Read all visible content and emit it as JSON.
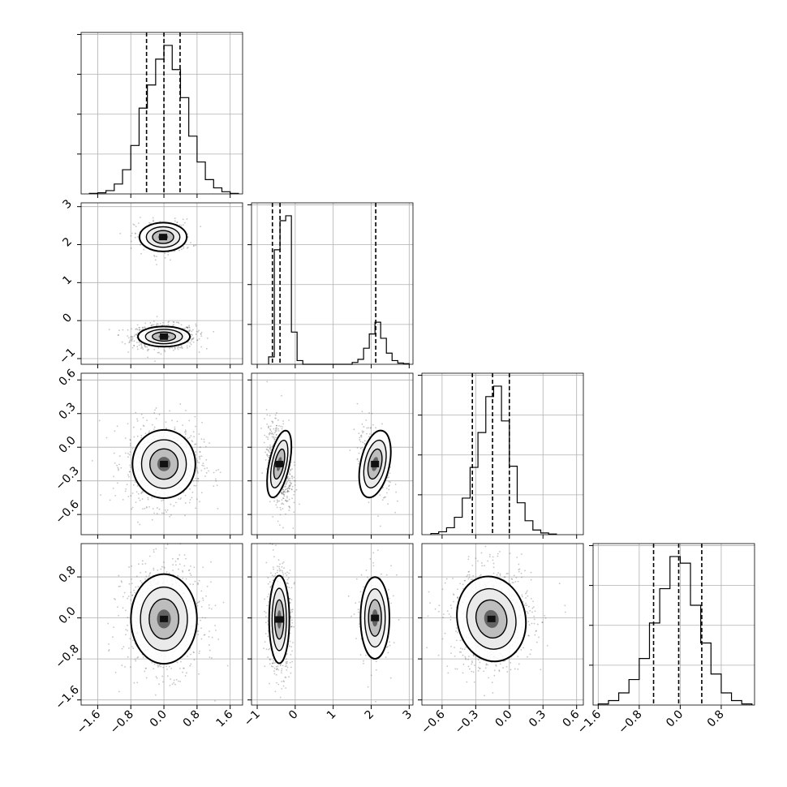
{
  "colors": {
    "line": "#000000",
    "grid": "#b0b0b0",
    "points": "#5a5a5a",
    "background": "#ffffff"
  },
  "chart_data": {
    "type": "corner",
    "title": "",
    "grid": true,
    "params": [
      {
        "tick_values": [
          -1.6,
          -0.8,
          0.0,
          0.8,
          1.6
        ],
        "tick_labels": [
          "−1.6",
          "−0.8",
          "0.0",
          "0.8",
          "1.6"
        ],
        "range": [
          -2.0,
          1.9
        ]
      },
      {
        "tick_values": [
          -1,
          0,
          1,
          2,
          3
        ],
        "tick_labels": [
          "−1",
          "0",
          "1",
          "2",
          "3"
        ],
        "range": [
          -1.15,
          3.1
        ]
      },
      {
        "tick_values": [
          -0.6,
          -0.3,
          0.0,
          0.3,
          0.6
        ],
        "tick_labels": [
          "−0.6",
          "−0.3",
          "0.0",
          "0.3",
          "0.6"
        ],
        "range": [
          -0.78,
          0.66
        ]
      },
      {
        "tick_values": [
          -1.6,
          -0.8,
          0.0,
          0.8
        ],
        "tick_labels": [
          "−1.6",
          "−0.8",
          "0.0",
          "0.8"
        ],
        "range": [
          -1.7,
          1.45
        ]
      }
    ],
    "marginals": [
      {
        "bins": [
          -1.8,
          -1.6,
          -1.4,
          -1.2,
          -1.0,
          -0.8,
          -0.6,
          -0.4,
          -0.2,
          0.0,
          0.2,
          0.4,
          0.6,
          0.8,
          1.0,
          1.2,
          1.4,
          1.6
        ],
        "counts": [
          1,
          2,
          6,
          18,
          44,
          88,
          156,
          198,
          245,
          270,
          226,
          175,
          105,
          58,
          26,
          11,
          4,
          1
        ],
        "quantiles": [
          -0.42,
          0.0,
          0.39
        ]
      },
      {
        "bins": [
          -0.7,
          -0.55,
          -0.4,
          -0.25,
          -0.1,
          0.05,
          1.5,
          1.65,
          1.8,
          1.95,
          2.1,
          2.25,
          2.4,
          2.55,
          2.7,
          2.85
        ],
        "counts": [
          12,
          185,
          232,
          240,
          52,
          6,
          3,
          8,
          26,
          49,
          68,
          42,
          18,
          6,
          2,
          1
        ],
        "quantiles": [
          -0.6,
          -0.4,
          2.12
        ]
      },
      {
        "bins": [
          -0.7,
          -0.63,
          -0.56,
          -0.49,
          -0.42,
          -0.35,
          -0.28,
          -0.21,
          -0.14,
          -0.07,
          0.0,
          0.07,
          0.14,
          0.21,
          0.28,
          0.35
        ],
        "counts": [
          2,
          5,
          12,
          30,
          63,
          116,
          176,
          238,
          256,
          196,
          118,
          55,
          24,
          8,
          3,
          1
        ],
        "quantiles": [
          -0.33,
          -0.15,
          0.0
        ]
      },
      {
        "bins": [
          -1.6,
          -1.4,
          -1.2,
          -1.0,
          -0.8,
          -0.6,
          -0.4,
          -0.2,
          0.0,
          0.2,
          0.4,
          0.6,
          0.8,
          1.0,
          1.2
        ],
        "counts": [
          2,
          8,
          22,
          46,
          84,
          148,
          210,
          268,
          256,
          180,
          112,
          56,
          22,
          8,
          2
        ],
        "quantiles": [
          -0.52,
          -0.03,
          0.42
        ]
      }
    ],
    "pairs": [
      {
        "x": 0,
        "y": 1,
        "clusters": [
          {
            "mx": 0.0,
            "my": -0.42,
            "sx": 0.33,
            "sy": 0.14,
            "n": 800
          },
          {
            "mx": -0.02,
            "my": 2.2,
            "sx": 0.3,
            "sy": 0.2,
            "n": 240
          }
        ]
      },
      {
        "x": 0,
        "y": 2,
        "clusters": [
          {
            "mx": 0.0,
            "my": -0.15,
            "sx": 0.4,
            "sy": 0.16,
            "n": 900
          }
        ]
      },
      {
        "x": 1,
        "y": 2,
        "clusters": [
          {
            "mx": -0.42,
            "my": -0.15,
            "sx": 0.14,
            "sy": 0.16,
            "n": 680,
            "rho": -0.3
          },
          {
            "mx": 2.1,
            "my": -0.15,
            "sx": 0.2,
            "sy": 0.16,
            "n": 220,
            "rho": -0.5
          }
        ]
      },
      {
        "x": 0,
        "y": 3,
        "clusters": [
          {
            "mx": 0.0,
            "my": -0.02,
            "sx": 0.42,
            "sy": 0.46,
            "n": 900
          }
        ]
      },
      {
        "x": 1,
        "y": 3,
        "clusters": [
          {
            "mx": -0.42,
            "my": -0.03,
            "sx": 0.14,
            "sy": 0.45,
            "n": 680
          },
          {
            "mx": 2.1,
            "my": 0.0,
            "sx": 0.2,
            "sy": 0.42,
            "n": 220
          }
        ]
      },
      {
        "x": 2,
        "y": 3,
        "clusters": [
          {
            "mx": -0.16,
            "my": -0.02,
            "sx": 0.16,
            "sy": 0.44,
            "n": 900,
            "rho": 0.05
          }
        ]
      }
    ],
    "contour_levels": [
      0.39,
      0.86,
      0.99,
      1.0
    ]
  }
}
